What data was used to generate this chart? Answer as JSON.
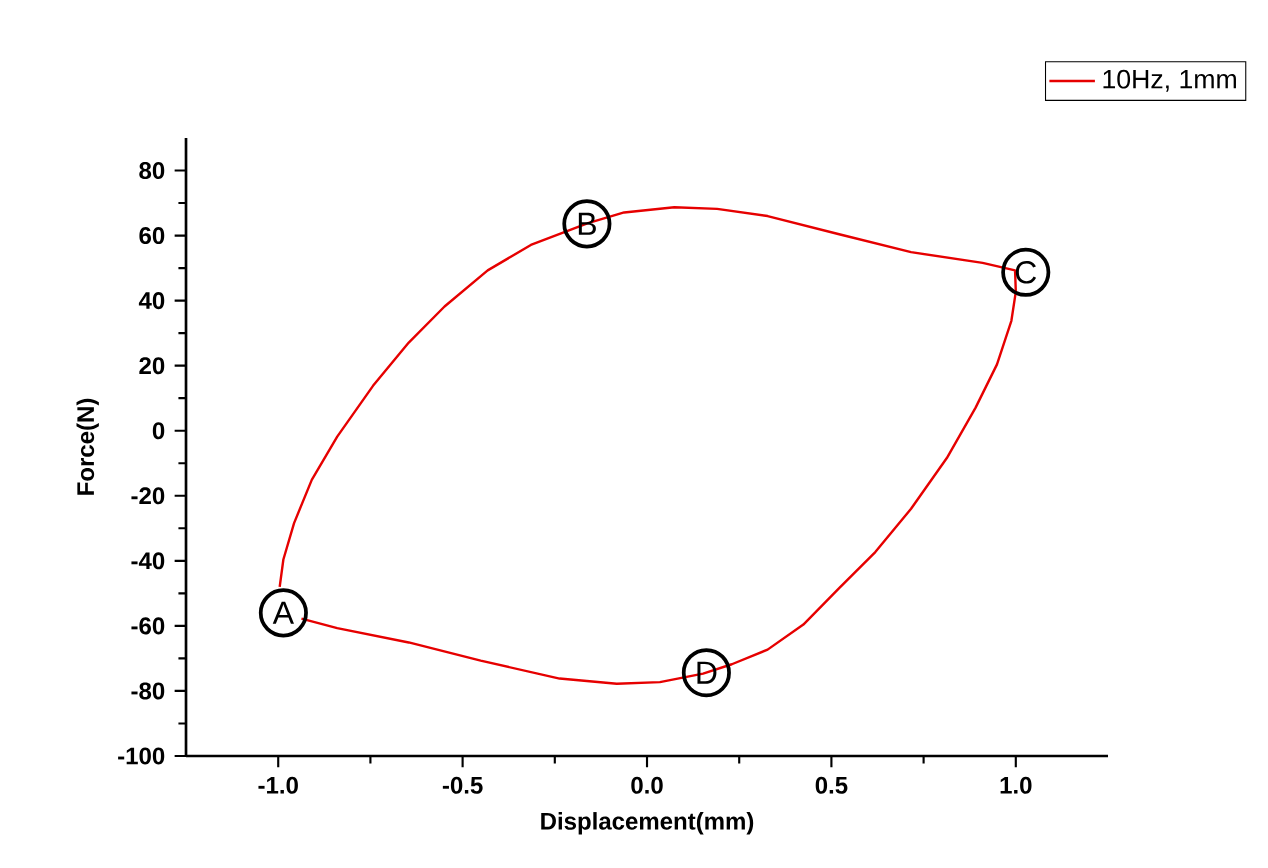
{
  "chart_data": {
    "type": "line",
    "xlabel": "Displacement(mm)",
    "ylabel": "Force(N)",
    "xlim": [
      -1.25,
      1.25
    ],
    "ylim": [
      -100,
      90
    ],
    "xticks": [
      {
        "value": -1.0,
        "label": "-1.0"
      },
      {
        "value": -0.5,
        "label": "-0.5"
      },
      {
        "value": 0,
        "label": "0.0"
      },
      {
        "value": 0.5,
        "label": "0.5"
      },
      {
        "value": 1.0,
        "label": "1.0"
      }
    ],
    "yticks": [
      -100,
      -80,
      -60,
      -40,
      -20,
      0,
      20,
      40,
      60,
      80
    ],
    "grid": false,
    "legend": "top right",
    "marker": "none",
    "line_style": "solid",
    "series": [
      {
        "name": "10Hz, 1mm",
        "color": "#e60000",
        "x": [
          -0.996,
          -0.986,
          -0.957,
          -0.909,
          -0.84,
          -0.743,
          -0.646,
          -0.549,
          -0.432,
          -0.315,
          -0.16,
          -0.062,
          0.074,
          0.19,
          0.327,
          0.521,
          0.716,
          0.91,
          0.998,
          1.0,
          0.988,
          0.949,
          0.891,
          0.813,
          0.716,
          0.619,
          0.521,
          0.424,
          0.327,
          0.23,
          0.152,
          0.035,
          -0.082,
          -0.237,
          -0.451,
          -0.646,
          -0.84,
          -0.937
        ],
        "values": [
          -48,
          -39.6,
          -28.4,
          -15.1,
          -1.8,
          13.8,
          27.1,
          38.2,
          49.3,
          57.1,
          63.8,
          67.1,
          68.7,
          68.2,
          66,
          60.4,
          54.9,
          51.6,
          49.3,
          42.7,
          33.8,
          20.4,
          7.1,
          -8.4,
          -24,
          -37.3,
          -48.4,
          -59.6,
          -67.3,
          -71.8,
          -74.7,
          -77.3,
          -77.8,
          -76.2,
          -70.7,
          -65.1,
          -60.7,
          -57.8
        ]
      }
    ],
    "annotations": [
      {
        "text": "A",
        "x": -0.986,
        "y": -56
      },
      {
        "text": "B",
        "x": -0.163,
        "y": 63.6
      },
      {
        "text": "C",
        "x": 1.027,
        "y": 48.7
      },
      {
        "text": "D",
        "x": 0.161,
        "y": -74.4
      }
    ]
  }
}
